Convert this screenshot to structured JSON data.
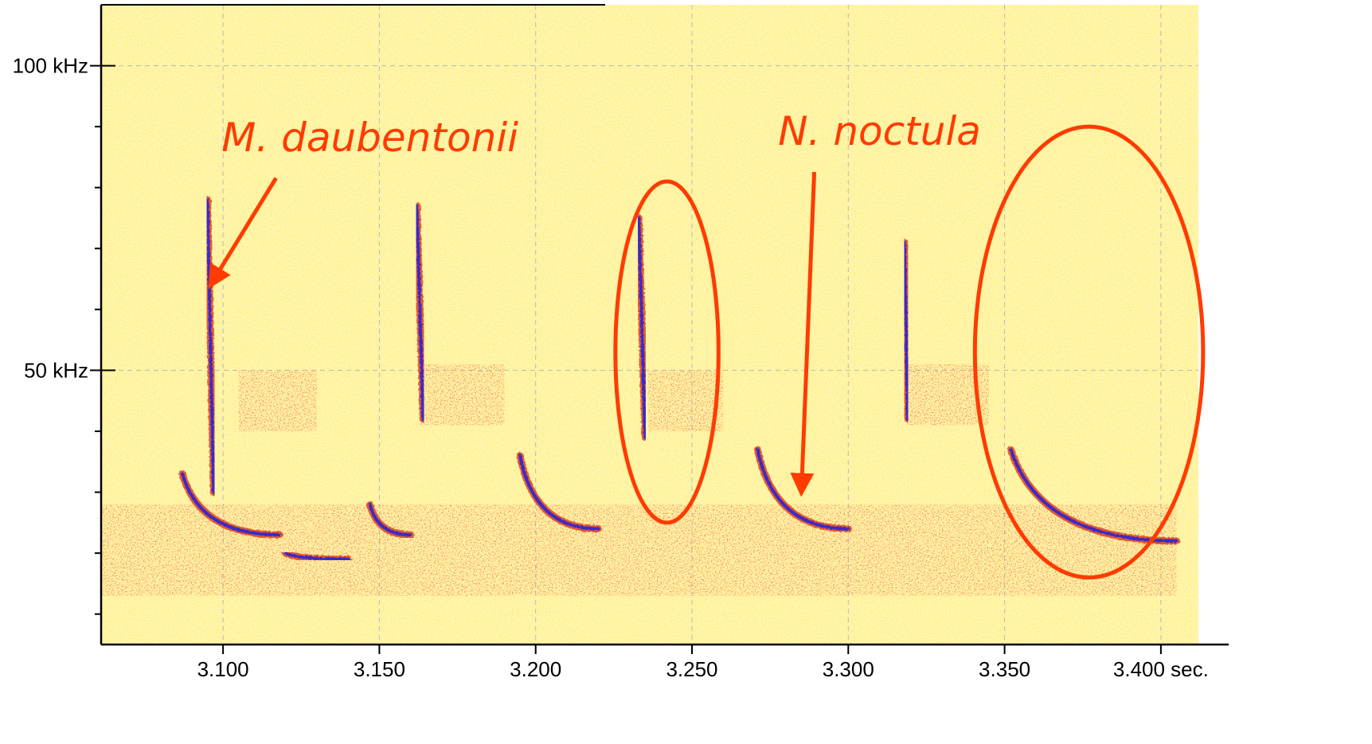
{
  "chart_data": {
    "type": "heatmap",
    "title": "",
    "xlabel": "",
    "ylabel": "",
    "xlim": [
      3.061,
      3.412
    ],
    "ylim": [
      5,
      110
    ],
    "x_tick_labels": [
      {
        "value": 3.1,
        "label": "3.100"
      },
      {
        "value": 3.15,
        "label": "3.150"
      },
      {
        "value": 3.2,
        "label": "3.200"
      },
      {
        "value": 3.25,
        "label": "3.250"
      },
      {
        "value": 3.3,
        "label": "3.300"
      },
      {
        "value": 3.35,
        "label": "3.350"
      },
      {
        "value": 3.4,
        "label": "3.400 sec."
      }
    ],
    "y_tick_labels": [
      {
        "value": 100,
        "label": "100 kHz"
      },
      {
        "value": 50,
        "label": "50 kHz"
      }
    ],
    "y_minor_ticks": [
      10,
      20,
      30,
      40,
      60,
      70,
      80,
      90
    ],
    "grid": true,
    "colors": {
      "background": "#fff6b0",
      "noise": "#ffd83a",
      "mid": "#e0421c",
      "strong": "#3a2bc8",
      "annotation": "#ff3b00"
    },
    "calls": [
      {
        "species": "M. daubentonii",
        "x_start": 3.095,
        "f_start": 78,
        "x_end": 3.097,
        "f_end": 30
      },
      {
        "species": "M. daubentonii",
        "x_start": 3.162,
        "f_start": 77,
        "x_end": 3.164,
        "f_end": 42
      },
      {
        "species": "M. daubentonii",
        "x_start": 3.233,
        "f_start": 75,
        "x_end": 3.235,
        "f_end": 39
      },
      {
        "species": "M. daubentonii",
        "x_start": 3.318,
        "f_start": 71,
        "x_end": 3.319,
        "f_end": 42
      },
      {
        "species": "N. noctula",
        "x_start": 3.087,
        "f_start": 33,
        "x_end": 3.118,
        "f_end": 23
      },
      {
        "species": "N. noctula",
        "x_start": 3.147,
        "f_start": 28,
        "x_end": 3.16,
        "f_end": 23
      },
      {
        "species": "N. noctula",
        "x_start": 3.12,
        "f_start": 20,
        "x_end": 3.14,
        "f_end": 19
      },
      {
        "species": "N. noctula",
        "x_start": 3.195,
        "f_start": 36,
        "x_end": 3.22,
        "f_end": 24
      },
      {
        "species": "N. noctula",
        "x_start": 3.271,
        "f_start": 37,
        "x_end": 3.3,
        "f_end": 24
      },
      {
        "species": "N. noctula",
        "x_start": 3.352,
        "f_start": 37,
        "x_end": 3.405,
        "f_end": 22
      }
    ],
    "annotations": [
      {
        "text": "M. daubentonii",
        "type": "arrow-label",
        "label_x": 3.147,
        "label_f": 86,
        "target_x": 3.096,
        "target_f": 64
      },
      {
        "text": "N. noctula",
        "type": "arrow-label",
        "label_x": 3.31,
        "label_f": 87,
        "target_x": 3.285,
        "target_f": 30
      }
    ],
    "highlight_ellipses": [
      {
        "cx": 3.242,
        "cy": 53,
        "rx": 0.0165,
        "ry": 28
      },
      {
        "cx": 3.377,
        "cy": 53,
        "rx": 0.0365,
        "ry": 37
      }
    ]
  }
}
